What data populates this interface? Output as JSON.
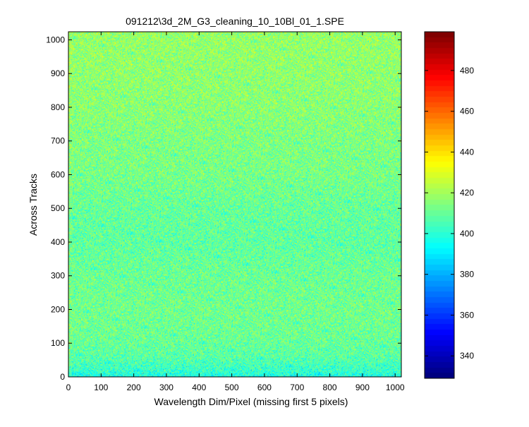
{
  "chart_data": {
    "type": "heatmap",
    "title": "091212\\3d_2M_G3_cleaning_10_10Bl_01_1.SPE",
    "xlabel": "Wavelength Dim/Pixel (missing first 5 pixels)",
    "ylabel": "Across Tracks",
    "xlim": [
      0,
      1019
    ],
    "ylim": [
      0,
      1024
    ],
    "x_ticks": [
      0,
      100,
      200,
      300,
      400,
      500,
      600,
      700,
      800,
      900,
      1000
    ],
    "y_ticks": [
      0,
      100,
      200,
      300,
      400,
      500,
      600,
      700,
      800,
      900,
      1000
    ],
    "colorbar": {
      "colormap": "jet",
      "range": [
        329,
        499
      ],
      "ticks": [
        340,
        360,
        380,
        400,
        420,
        440,
        460,
        480
      ]
    },
    "intensity_profile": {
      "description_axis": "mean value vs across-track row (y), approximate",
      "rows": [
        0,
        20,
        60,
        120,
        200,
        300,
        400,
        500,
        600,
        700,
        800,
        900,
        1024
      ],
      "mean": [
        396,
        402,
        408,
        411,
        412,
        411,
        409,
        410,
        413,
        414,
        416,
        417,
        418
      ]
    },
    "noise_std": 9,
    "grid": false
  }
}
